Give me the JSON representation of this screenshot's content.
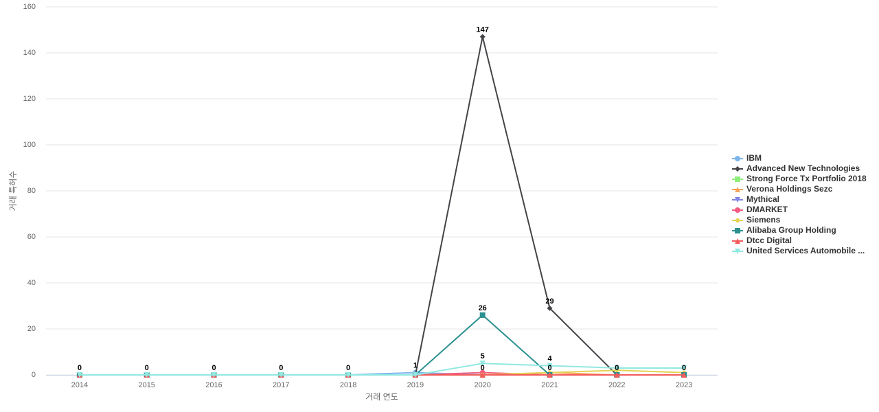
{
  "chart_data": {
    "type": "line",
    "x_label": "거래 연도",
    "y_label": "거래 특허수",
    "categories": [
      "2014",
      "2015",
      "2016",
      "2017",
      "2018",
      "2019",
      "2020",
      "2021",
      "2022",
      "2023"
    ],
    "ylim": [
      0,
      160
    ],
    "yticks": [
      0,
      20,
      40,
      60,
      80,
      100,
      120,
      140,
      160
    ],
    "grid": true,
    "legend": "right",
    "series": [
      {
        "name": "IBM",
        "color": "#7cb5ec",
        "values": [
          0,
          0,
          0,
          0,
          0,
          1,
          0,
          0,
          0,
          0
        ],
        "value_labels": [
          "0",
          "0",
          "0",
          "0",
          "0",
          "1",
          null,
          null,
          null,
          null
        ]
      },
      {
        "name": "Advanced New Technologies",
        "color": "#434348",
        "values": [
          0,
          0,
          0,
          0,
          0,
          0,
          147,
          29,
          0,
          0
        ],
        "value_labels": [
          null,
          null,
          null,
          null,
          null,
          null,
          "147",
          "29",
          "0",
          "0"
        ]
      },
      {
        "name": "Strong Force Tx Portfolio 2018",
        "color": "#90ed7d",
        "values": [
          0,
          0,
          0,
          0,
          0,
          0,
          0,
          0,
          0,
          0
        ]
      },
      {
        "name": "Verona Holdings Sezc",
        "color": "#f7a35c",
        "values": [
          0,
          0,
          0,
          0,
          0,
          0,
          0,
          1,
          0,
          0
        ]
      },
      {
        "name": "Mythical",
        "color": "#8085e9",
        "values": [
          0,
          0,
          0,
          0,
          0,
          0,
          0,
          0,
          0,
          0
        ]
      },
      {
        "name": "DMARKET",
        "color": "#f15c80",
        "values": [
          0,
          0,
          0,
          0,
          0,
          0,
          1,
          0,
          0,
          0
        ]
      },
      {
        "name": "Siemens",
        "color": "#e4d354",
        "values": [
          0,
          0,
          0,
          0,
          0,
          0,
          0,
          1,
          2,
          1
        ]
      },
      {
        "name": "Alibaba Group Holding",
        "color": "#2b908f",
        "values": [
          0,
          0,
          0,
          0,
          0,
          0,
          26,
          0,
          0,
          0
        ],
        "value_labels": [
          null,
          null,
          null,
          null,
          null,
          null,
          "26",
          "0",
          null,
          null
        ]
      },
      {
        "name": "Dtcc Digital",
        "color": "#f45b5b",
        "values": [
          0,
          0,
          0,
          0,
          0,
          0,
          0,
          0,
          0,
          0
        ],
        "value_labels": [
          null,
          null,
          null,
          null,
          null,
          null,
          "0",
          null,
          null,
          null
        ]
      },
      {
        "name": "United Services Automobile ...",
        "color": "#91e8e1",
        "values": [
          0,
          0,
          0,
          0,
          0,
          0,
          5,
          4,
          3,
          3
        ],
        "value_labels": [
          null,
          null,
          null,
          null,
          null,
          null,
          "5",
          "4",
          null,
          null
        ]
      }
    ]
  }
}
